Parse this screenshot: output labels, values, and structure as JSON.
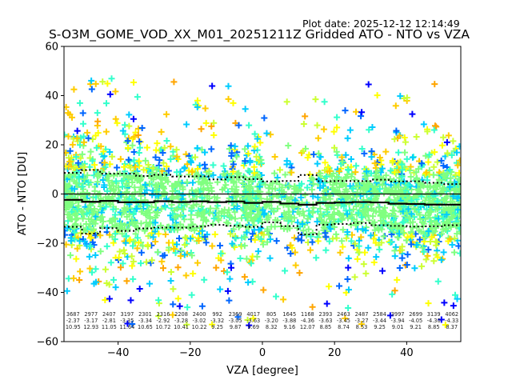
{
  "header": {
    "plot_date": "Plot date: 2025-12-12 12:14:49",
    "title": "S-O3M_GOME_VOD_XX_M01_20251211Z Gridded ATO - NTO vs VZA"
  },
  "chart_data": {
    "type": "scatter",
    "title": "S-O3M_GOME_VOD_XX_M01_20251211Z Gridded ATO - NTO vs VZA",
    "xlabel": "VZA [degree]",
    "ylabel": "ATO - NTO [DU]",
    "xlim": [
      -55,
      55
    ],
    "ylim": [
      -60,
      60
    ],
    "xticks": [
      -40,
      -20,
      0,
      20,
      40
    ],
    "xtick_labels": [
      "−40",
      "−20",
      "0",
      "20",
      "40"
    ],
    "yticks": [
      -60,
      -40,
      -20,
      0,
      20,
      40,
      60
    ],
    "ytick_labels": [
      "−60",
      "−40",
      "−20",
      "0",
      "20",
      "40",
      "60"
    ],
    "grid": false,
    "marker": "+",
    "colormap": [
      "#0000ff",
      "#0066ff",
      "#00ccff",
      "#33ffcc",
      "#80ff80",
      "#ccff33",
      "#ffff00",
      "#ffcc00",
      "#ffa500"
    ],
    "zero_line": 0,
    "bin_width": 5,
    "bins": [
      {
        "center": -52.5,
        "count": "3687",
        "mean": "-2.37",
        "std": "10.95"
      },
      {
        "center": -47.5,
        "count": "2977",
        "mean": "-3.17",
        "std": "12.93"
      },
      {
        "center": -42.5,
        "count": "2407",
        "mean": "-2.81",
        "std": "11.05"
      },
      {
        "center": -37.5,
        "count": "3197",
        "mean": "-3.35",
        "std": "11.64"
      },
      {
        "center": -32.5,
        "count": "2301",
        "mean": "-3.34",
        "std": "10.65"
      },
      {
        "center": -27.5,
        "count": "2316",
        "mean": "-2.92",
        "std": "10.72"
      },
      {
        "center": -22.5,
        "count": "2208",
        "mean": "-3.28",
        "std": "10.41"
      },
      {
        "center": -17.5,
        "count": "2400",
        "mean": "-3.02",
        "std": "10.22"
      },
      {
        "center": -12.5,
        "count": "992",
        "mean": "-3.32",
        "std": "9.25"
      },
      {
        "center": -7.5,
        "count": "2369",
        "mean": "-3.05",
        "std": "9.87"
      },
      {
        "center": -2.5,
        "count": "4017",
        "mean": "-3.63",
        "std": "9.69"
      },
      {
        "center": 2.5,
        "count": "805",
        "mean": "-3.20",
        "std": "8.32"
      },
      {
        "center": 7.5,
        "count": "1645",
        "mean": "-3.88",
        "std": "9.16"
      },
      {
        "center": 12.5,
        "count": "1168",
        "mean": "-4.36",
        "std": "12.07"
      },
      {
        "center": 17.5,
        "count": "2393",
        "mean": "-3.63",
        "std": "8.85"
      },
      {
        "center": 22.5,
        "count": "2463",
        "mean": "-3.45",
        "std": "8.74"
      },
      {
        "center": 27.5,
        "count": "2487",
        "mean": "-3.27",
        "std": "8.53"
      },
      {
        "center": 32.5,
        "count": "2584",
        "mean": "-3.44",
        "std": "9.25"
      },
      {
        "center": 37.5,
        "count": "3997",
        "mean": "-3.94",
        "std": "9.01"
      },
      {
        "center": 42.5,
        "count": "2699",
        "mean": "-4.05",
        "std": "9.21"
      },
      {
        "center": 47.5,
        "count": "3139",
        "mean": "-4.30",
        "std": "8.85"
      },
      {
        "center": 52.5,
        "count": "4062",
        "mean": "-4.33",
        "std": "8.37"
      }
    ]
  }
}
